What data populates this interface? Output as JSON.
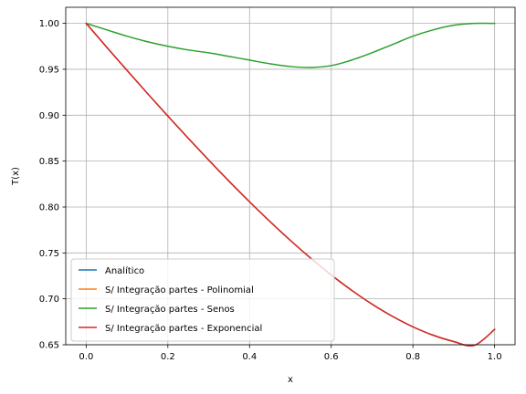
{
  "chart_data": {
    "type": "line",
    "xlabel": "x",
    "ylabel": "T(x)",
    "xlim": [
      -0.05,
      1.05
    ],
    "ylim": [
      0.65,
      1.0175
    ],
    "grid": true,
    "legend_position": "lower-left",
    "x_ticks": [
      0.0,
      0.2,
      0.4,
      0.6,
      0.8,
      1.0
    ],
    "x_tick_labels": [
      "0.0",
      "0.2",
      "0.4",
      "0.6",
      "0.8",
      "1.0"
    ],
    "y_ticks": [
      0.65,
      0.7,
      0.75,
      0.8,
      0.85,
      0.9,
      0.95,
      1.0
    ],
    "y_tick_labels": [
      "0.65",
      "0.70",
      "0.75",
      "0.80",
      "0.85",
      "0.90",
      "0.95",
      "1.00"
    ],
    "x": [
      0.0,
      0.05,
      0.1,
      0.15,
      0.2,
      0.25,
      0.3,
      0.35,
      0.4,
      0.45,
      0.5,
      0.55,
      0.6,
      0.65,
      0.7,
      0.75,
      0.8,
      0.85,
      0.9,
      0.95,
      1.0
    ],
    "series": [
      {
        "name": "Analítico",
        "color": "#1f77b4",
        "values": [
          1.0,
          0.9742,
          0.9488,
          0.9237,
          0.899,
          0.8748,
          0.8511,
          0.828,
          0.8057,
          0.7842,
          0.7636,
          0.7442,
          0.726,
          0.7093,
          0.6942,
          0.6809,
          0.6695,
          0.6603,
          0.6535,
          0.6493,
          0.6667
        ]
      },
      {
        "name": "S/ Integração partes - Polinomial",
        "color": "#ff7f0e",
        "values": [
          1.0,
          0.9742,
          0.9488,
          0.9237,
          0.899,
          0.8748,
          0.8511,
          0.828,
          0.8057,
          0.7842,
          0.7636,
          0.7442,
          0.726,
          0.7093,
          0.6942,
          0.6809,
          0.6695,
          0.6603,
          0.6535,
          0.6493,
          0.6667
        ]
      },
      {
        "name": "S/ Integração partes - Senos",
        "color": "#2ca02c",
        "values": [
          1.0,
          0.993,
          0.986,
          0.98,
          0.975,
          0.971,
          0.968,
          0.964,
          0.96,
          0.956,
          0.953,
          0.952,
          0.954,
          0.96,
          0.968,
          0.977,
          0.986,
          0.993,
          0.998,
          1.0,
          1.0
        ]
      },
      {
        "name": "S/ Integração partes - Exponencial",
        "color": "#d62728",
        "values": [
          1.0,
          0.9742,
          0.9488,
          0.9237,
          0.899,
          0.8748,
          0.8511,
          0.828,
          0.8057,
          0.7842,
          0.7636,
          0.7442,
          0.726,
          0.7093,
          0.6942,
          0.6809,
          0.6695,
          0.6603,
          0.6535,
          0.6493,
          0.6667
        ]
      }
    ]
  }
}
